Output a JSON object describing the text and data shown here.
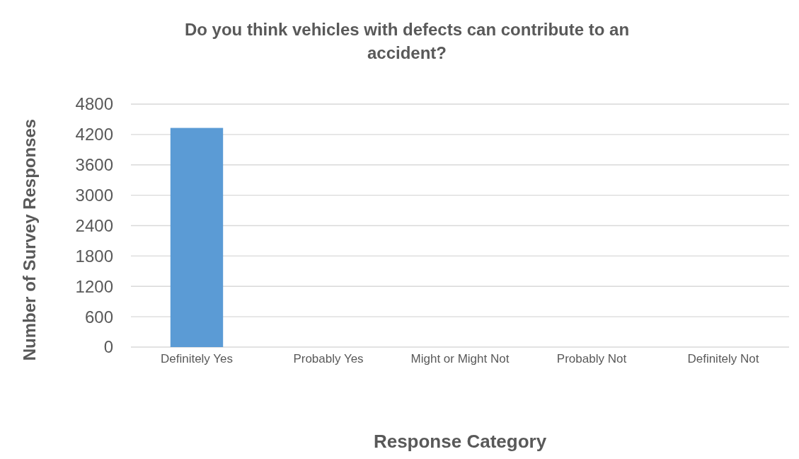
{
  "chart_data": {
    "type": "bar",
    "title": "Do you think vehicles with defects can contribute to an accident?",
    "xlabel": "Response Category",
    "ylabel": "Number of Survey Responses",
    "categories": [
      "Definitely Yes",
      "Probably Yes",
      "Might or Might Not",
      "Probably Not",
      "Definitely Not"
    ],
    "values": [
      4330,
      null,
      null,
      null,
      null
    ],
    "color": "#5b9bd5",
    "ylim": [
      0,
      4800
    ],
    "yticks": [
      0,
      600,
      1200,
      1800,
      2400,
      3000,
      3600,
      4200,
      4800
    ],
    "grid": "y"
  }
}
